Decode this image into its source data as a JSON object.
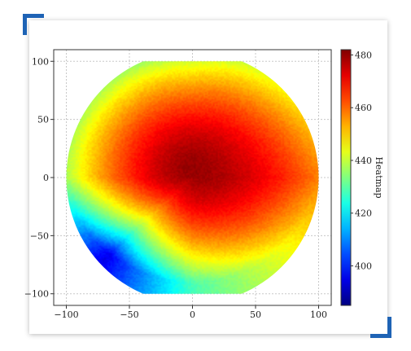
{
  "chart_data": {
    "type": "heatmap",
    "shape": "circular",
    "title": "",
    "xlabel": "",
    "ylabel": "",
    "xlim": [
      -110,
      110
    ],
    "ylim": [
      -110,
      110
    ],
    "xticks": [
      -100,
      -50,
      0,
      50,
      100
    ],
    "yticks": [
      -100,
      -50,
      0,
      50,
      100
    ],
    "grid": true,
    "colorbar": {
      "label": "Heatmap",
      "range": [
        385,
        482
      ],
      "ticks": [
        400,
        420,
        440,
        460,
        480
      ],
      "colormap": "jet"
    },
    "field": {
      "radius": 100,
      "peak": {
        "x": 0,
        "y": 10,
        "value": 480
      },
      "edge_values": [
        {
          "x": 100,
          "y": 0,
          "value": 458
        },
        {
          "x": -100,
          "y": 0,
          "value": 438
        },
        {
          "x": 0,
          "y": 100,
          "value": 435
        },
        {
          "x": 0,
          "y": -100,
          "value": 428
        },
        {
          "x": -70,
          "y": -70,
          "value": 395
        },
        {
          "x": 70,
          "y": 70,
          "value": 445
        }
      ]
    }
  },
  "decor": {
    "accent": "#1e63b5"
  }
}
